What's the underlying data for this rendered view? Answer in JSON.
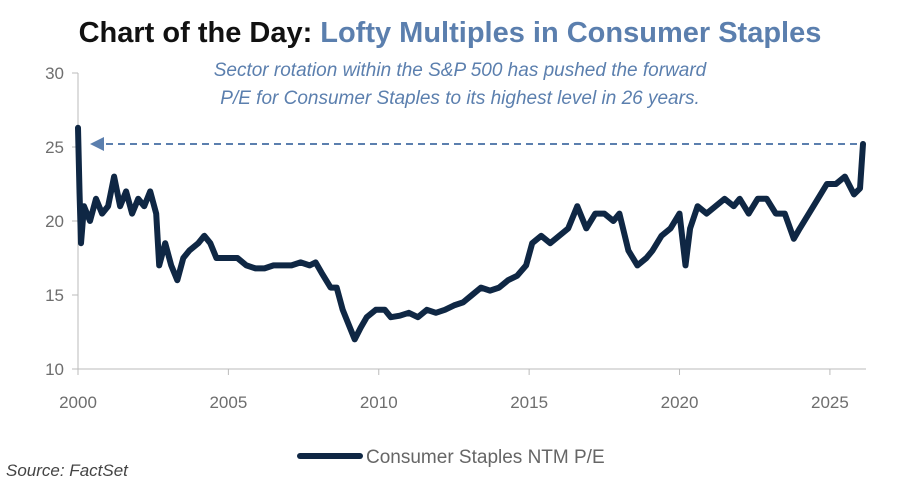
{
  "chart_data": {
    "type": "line",
    "title": "Chart of the Day:",
    "title_highlight": "Lofty Multiples in Consumer Staples",
    "annotation": [
      "Sector rotation within the S&P 500 has pushed the forward",
      "P/E for Consumer Staples to its highest level in 26 years."
    ],
    "source": "Source: FactSet",
    "x": [
      2000.0,
      2000.05,
      2000.1,
      2000.2,
      2000.4,
      2000.6,
      2000.8,
      2001.0,
      2001.2,
      2001.4,
      2001.6,
      2001.8,
      2002.0,
      2002.2,
      2002.4,
      2002.6,
      2002.7,
      2002.9,
      2003.1,
      2003.3,
      2003.5,
      2003.7,
      2004.0,
      2004.2,
      2004.4,
      2004.6,
      2004.8,
      2005.0,
      2005.3,
      2005.6,
      2005.9,
      2006.2,
      2006.5,
      2006.8,
      2007.1,
      2007.4,
      2007.7,
      2007.9,
      2008.1,
      2008.4,
      2008.6,
      2008.8,
      2009.0,
      2009.2,
      2009.4,
      2009.6,
      2009.9,
      2010.2,
      2010.4,
      2010.7,
      2011.0,
      2011.3,
      2011.6,
      2011.9,
      2012.2,
      2012.5,
      2012.8,
      2013.1,
      2013.4,
      2013.7,
      2014.0,
      2014.3,
      2014.6,
      2014.9,
      2015.1,
      2015.4,
      2015.7,
      2016.0,
      2016.3,
      2016.6,
      2016.9,
      2017.2,
      2017.5,
      2017.8,
      2018.0,
      2018.3,
      2018.6,
      2018.9,
      2019.1,
      2019.4,
      2019.7,
      2020.0,
      2020.2,
      2020.35,
      2020.6,
      2020.9,
      2021.2,
      2021.5,
      2021.8,
      2022.0,
      2022.3,
      2022.6,
      2022.9,
      2023.2,
      2023.5,
      2023.8,
      2024.0,
      2024.3,
      2024.6,
      2024.9,
      2025.2,
      2025.5,
      2025.8,
      2026.0,
      2026.1
    ],
    "series": [
      {
        "name": "Consumer Staples NTM P/E",
        "color": "#0f2744",
        "values": [
          26.3,
          22,
          18.5,
          21,
          20,
          21.5,
          20.5,
          21,
          23,
          21,
          22,
          20.5,
          21.5,
          21,
          22,
          20.5,
          17,
          18.5,
          17,
          16,
          17.5,
          18,
          18.5,
          19,
          18.5,
          17.5,
          17.5,
          17.5,
          17.5,
          17,
          16.8,
          16.8,
          17,
          17,
          17,
          17.2,
          17,
          17.2,
          16.5,
          15.5,
          15.5,
          14,
          13,
          12,
          12.8,
          13.5,
          14,
          14,
          13.5,
          13.6,
          13.8,
          13.5,
          14,
          13.8,
          14,
          14.3,
          14.5,
          15,
          15.5,
          15.3,
          15.5,
          16,
          16.3,
          17,
          18.5,
          19,
          18.5,
          19,
          19.5,
          21,
          19.5,
          20.5,
          20.5,
          20,
          20.5,
          18,
          17,
          17.5,
          18,
          19,
          19.5,
          20.5,
          17,
          19.5,
          21,
          20.5,
          21,
          21.5,
          21,
          21.5,
          20.5,
          21.5,
          21.5,
          20.5,
          20.5,
          18.8,
          19.5,
          20.5,
          21.5,
          22.5,
          22.5,
          23,
          21.8,
          22.2,
          25.2
        ]
      }
    ],
    "xlim": [
      2000,
      2026.2
    ],
    "xticks": [
      2000,
      2005,
      2010,
      2015,
      2020,
      2025
    ],
    "ylim": [
      10,
      30
    ],
    "yticks": [
      10,
      15,
      20,
      25,
      30
    ],
    "annotation_color": "#5b7fae"
  }
}
